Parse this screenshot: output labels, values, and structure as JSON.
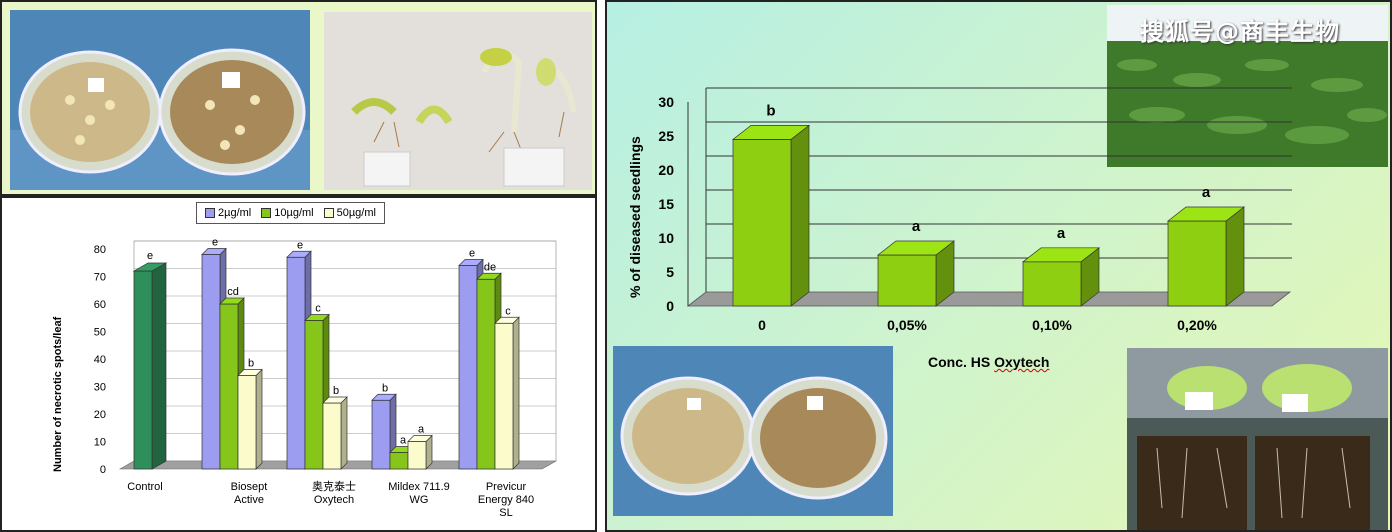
{
  "left_chart": {
    "legend": [
      {
        "label": "2µg/ml",
        "color": "#9c9cf0"
      },
      {
        "label": "10µg/ml",
        "color": "#86c51a"
      },
      {
        "label": "50µg/ml",
        "color": "#fbfbcc"
      }
    ],
    "ylabel": "Number of necrotic spots/leaf",
    "control_color": "#2f8f5a"
  },
  "right_chart": {
    "ylabel": "% of diseased seedlings",
    "xlabel_prefix": "Conc. HS ",
    "xlabel_word": "Oxytech",
    "bar_color": "#8fcf12"
  },
  "watermark": "搜狐号@商丰生物",
  "chart_data": [
    {
      "type": "bar",
      "categories": [
        "Control",
        "Biosept Active",
        "奥克泰士 Oxytech",
        "Mildex 711.9 WG",
        "Previcur Energy 840 SL"
      ],
      "series": [
        {
          "name": "2µg/ml",
          "values": [
            null,
            78,
            77,
            25,
            74
          ],
          "labels": [
            null,
            "e",
            "e",
            "b",
            "e"
          ]
        },
        {
          "name": "10µg/ml",
          "values": [
            null,
            60,
            54,
            6,
            69
          ],
          "labels": [
            null,
            "cd",
            "c",
            "a",
            "de"
          ]
        },
        {
          "name": "50µg/ml",
          "values": [
            null,
            34,
            24,
            10,
            53
          ],
          "labels": [
            null,
            "b",
            "b",
            "a",
            "c"
          ]
        }
      ],
      "control": {
        "value": 72,
        "label": "e"
      },
      "ylim": [
        0,
        80
      ],
      "yticks": [
        0,
        10,
        20,
        30,
        40,
        50,
        60,
        70,
        80
      ],
      "ylabel": "Number of necrotic spots/leaf",
      "legend": "top"
    },
    {
      "type": "bar",
      "categories": [
        "0",
        "0,05%",
        "0,10%",
        "0,20%"
      ],
      "values": [
        24.5,
        7.5,
        6.5,
        12.5
      ],
      "labels": [
        "b",
        "a",
        "a",
        "a"
      ],
      "ylim": [
        0,
        30
      ],
      "yticks": [
        0,
        5,
        10,
        15,
        20,
        25,
        30
      ],
      "ylabel": "% of diseased seedlings",
      "xlabel": "Conc. HS Oxytech"
    }
  ]
}
